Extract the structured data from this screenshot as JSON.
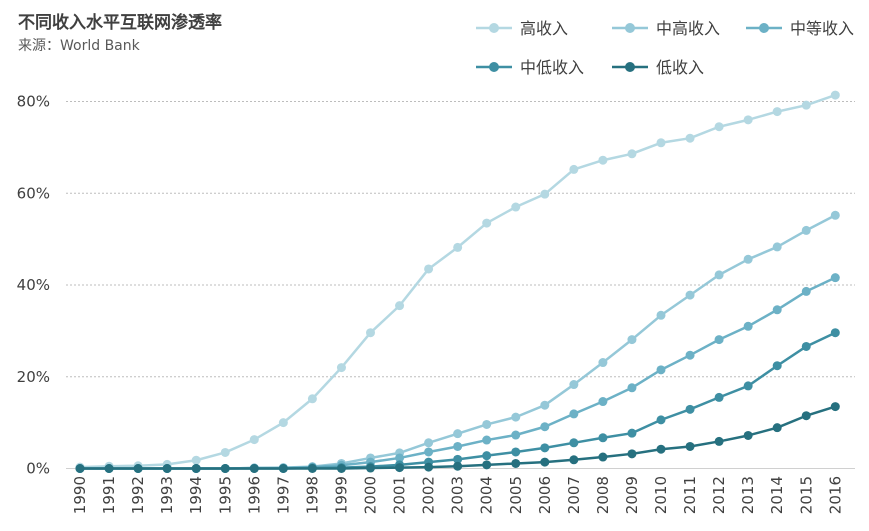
{
  "chart_data": {
    "type": "line",
    "title": "不同收入水平互联网渗透率",
    "subtitle": "来源：World Bank",
    "xlabel": "",
    "ylabel": "",
    "ylim": [
      0,
      80
    ],
    "y_ticks": [
      "0%",
      "20%",
      "40%",
      "60%",
      "80%"
    ],
    "y_tick_values": [
      0,
      20,
      40,
      60,
      80
    ],
    "grid": true,
    "legend_position": "top-right",
    "x": [
      "1990",
      "1991",
      "1992",
      "1993",
      "1994",
      "1995",
      "1996",
      "1997",
      "1998",
      "1999",
      "2000",
      "2001",
      "2002",
      "2003",
      "2004",
      "2005",
      "2006",
      "2007",
      "2008",
      "2009",
      "2010",
      "2011",
      "2012",
      "2013",
      "2014",
      "2015",
      "2016"
    ],
    "series": [
      {
        "name": "高收入",
        "color": "#b4d8e2",
        "values": [
          0.3,
          0.5,
          0.6,
          0.9,
          1.8,
          3.5,
          6.3,
          10.0,
          15.2,
          22.0,
          29.6,
          35.5,
          43.5,
          48.2,
          53.5,
          57.0,
          59.8,
          65.2,
          67.2,
          68.6,
          71.0,
          72.0,
          74.5,
          76.0,
          77.8,
          79.2,
          81.4
        ]
      },
      {
        "name": "中高收入",
        "color": "#95c8d8",
        "values": [
          0,
          0,
          0,
          0,
          0,
          0,
          0.1,
          0.2,
          0.4,
          1.1,
          2.3,
          3.4,
          5.6,
          7.6,
          9.6,
          11.2,
          13.8,
          18.3,
          23.1,
          28.1,
          33.4,
          37.8,
          42.2,
          45.6,
          48.3,
          51.9,
          55.2
        ]
      },
      {
        "name": "中等收入",
        "color": "#6cb1c6",
        "values": [
          0,
          0,
          0,
          0,
          0,
          0,
          0.1,
          0.1,
          0.3,
          0.7,
          1.4,
          2.3,
          3.6,
          4.8,
          6.2,
          7.3,
          9.1,
          11.9,
          14.6,
          17.6,
          21.5,
          24.7,
          28.1,
          31.0,
          34.6,
          38.6,
          41.6
        ]
      },
      {
        "name": "中低收入",
        "color": "#3e8fa3",
        "values": [
          0,
          0,
          0,
          0,
          0,
          0,
          0,
          0,
          0.1,
          0.2,
          0.4,
          0.8,
          1.4,
          2.0,
          2.8,
          3.6,
          4.5,
          5.6,
          6.7,
          7.7,
          10.6,
          12.9,
          15.5,
          18.0,
          22.4,
          26.6,
          29.6
        ]
      },
      {
        "name": "低收入",
        "color": "#26707f",
        "values": [
          0,
          0,
          0,
          0,
          0,
          0,
          0,
          0,
          0,
          0,
          0.1,
          0.2,
          0.3,
          0.5,
          0.8,
          1.1,
          1.4,
          1.9,
          2.5,
          3.2,
          4.2,
          4.8,
          5.9,
          7.2,
          8.9,
          11.5,
          13.5
        ]
      }
    ]
  }
}
